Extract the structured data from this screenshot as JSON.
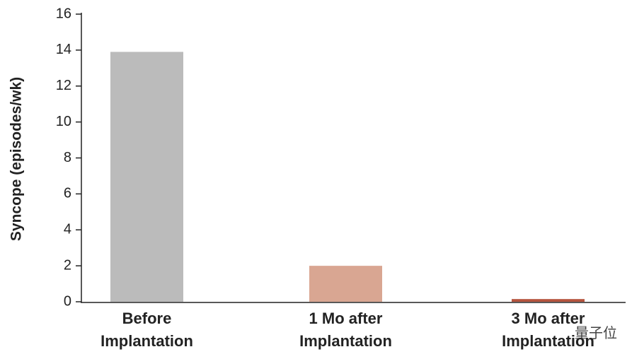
{
  "chart_data": {
    "type": "bar",
    "ylabel": "Syncope (episodes/wk)",
    "categories": [
      "Before Implantation",
      "1 Mo after Implantation",
      "3 Mo after Implantation"
    ],
    "values": [
      13.9,
      2.0,
      0.15
    ],
    "colors": [
      "#bbbbbb",
      "#d9a692",
      "#b5533c"
    ],
    "ylim": [
      0,
      16
    ],
    "yticks": [
      0,
      2,
      4,
      6,
      8,
      10,
      12,
      14,
      16
    ],
    "grid": false,
    "watermark": "量子位"
  }
}
